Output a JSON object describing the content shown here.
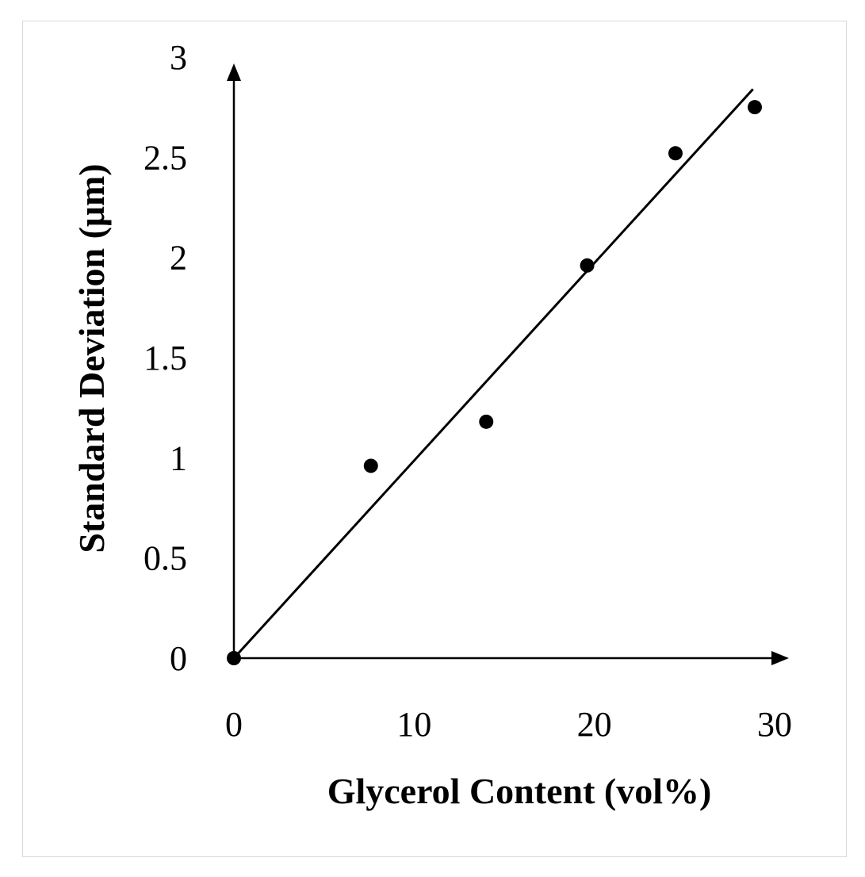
{
  "chart_data": {
    "type": "scatter",
    "title": "",
    "xlabel": "Glycerol Content (vol%)",
    "ylabel": "Standard Deviation (μm)",
    "xlim": [
      0,
      30
    ],
    "ylim": [
      0,
      3
    ],
    "x_ticks": [
      "0",
      "10",
      "20",
      "30"
    ],
    "y_ticks": [
      "0",
      "0.5",
      "1",
      "1.5",
      "2",
      "2.5",
      "3"
    ],
    "grid": false,
    "legend": "none",
    "series": [
      {
        "points": [
          {
            "x": 0,
            "y": 0
          },
          {
            "x": 7.6,
            "y": 0.96
          },
          {
            "x": 14.0,
            "y": 1.18
          },
          {
            "x": 19.6,
            "y": 1.96
          },
          {
            "x": 24.5,
            "y": 2.52
          },
          {
            "x": 28.9,
            "y": 2.75
          }
        ]
      }
    ],
    "trendline": {
      "x": [
        0,
        28.8
      ],
      "y": [
        0,
        2.84
      ]
    },
    "colors": {
      "marker": "#000000",
      "line": "#000000",
      "axis": "#000000"
    }
  }
}
